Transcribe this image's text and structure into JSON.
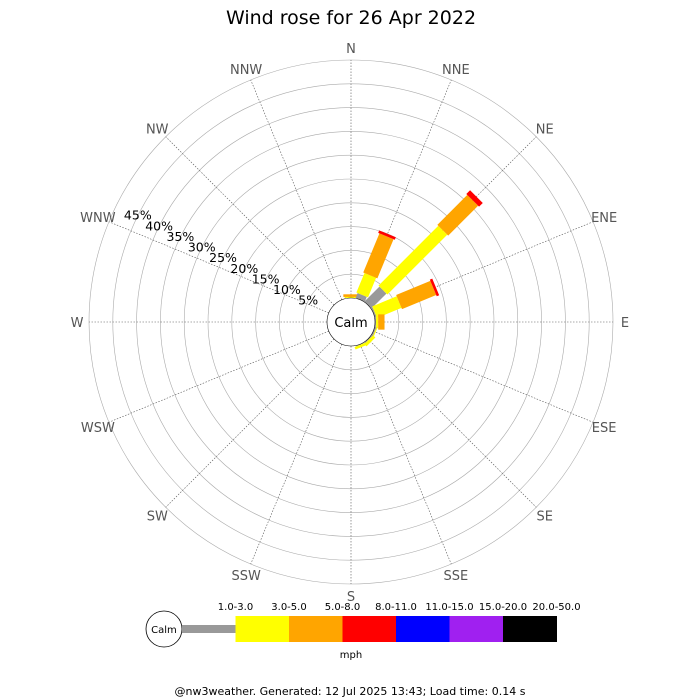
{
  "chart_data": {
    "type": "wind-rose",
    "title": "Wind rose for 26 Apr 2022",
    "directions": [
      "N",
      "NNE",
      "NE",
      "ENE",
      "E",
      "ESE",
      "SE",
      "SSE",
      "S",
      "SSW",
      "SW",
      "WSW",
      "W",
      "WNW",
      "NW",
      "NNW"
    ],
    "ring_labels": [
      "5%",
      "10%",
      "15%",
      "20%",
      "25%",
      "30%",
      "35%",
      "40%",
      "45%"
    ],
    "r_max_percent": 45,
    "calm_label": "Calm",
    "speed_bins": [
      {
        "label": "1.0-3.0",
        "color": "#999999"
      },
      {
        "label": "3.0-5.0",
        "color": "#ffff00"
      },
      {
        "label": "5.0-8.0",
        "color": "#ffa500"
      },
      {
        "label": "8.0-11.0",
        "color": "#ff0000"
      },
      {
        "label": "11.0-15.0",
        "color": "#0000ff"
      },
      {
        "label": "15.0-20.0",
        "color": "#a020f0"
      },
      {
        "label": "20.0-50.0",
        "color": "#000000"
      }
    ],
    "unit": "mph",
    "series": [
      {
        "direction": "N",
        "values": [
          0,
          0.2,
          0.5,
          0,
          0,
          0,
          0
        ]
      },
      {
        "direction": "NNE",
        "values": [
          1,
          4,
          8,
          0.5,
          0,
          0,
          0
        ]
      },
      {
        "direction": "NE",
        "values": [
          4,
          16,
          8,
          1,
          0,
          0,
          0
        ]
      },
      {
        "direction": "ENE",
        "values": [
          0.3,
          5,
          7,
          0.5,
          0,
          0,
          0
        ]
      },
      {
        "direction": "E",
        "values": [
          0.2,
          0.4,
          1.2,
          0,
          0,
          0,
          0
        ]
      },
      {
        "direction": "ESE",
        "values": [
          0.3,
          0.2,
          0,
          0,
          0,
          0,
          0
        ]
      },
      {
        "direction": "SE",
        "values": [
          0.2,
          0.6,
          0,
          0,
          0,
          0,
          0
        ]
      },
      {
        "direction": "SSE",
        "values": [
          0.1,
          0.5,
          0,
          0,
          0,
          0,
          0
        ]
      }
    ]
  },
  "footer": "@nw3weather.  Generated: 12 Jul 2025 13:43; Load time: 0.14 s"
}
